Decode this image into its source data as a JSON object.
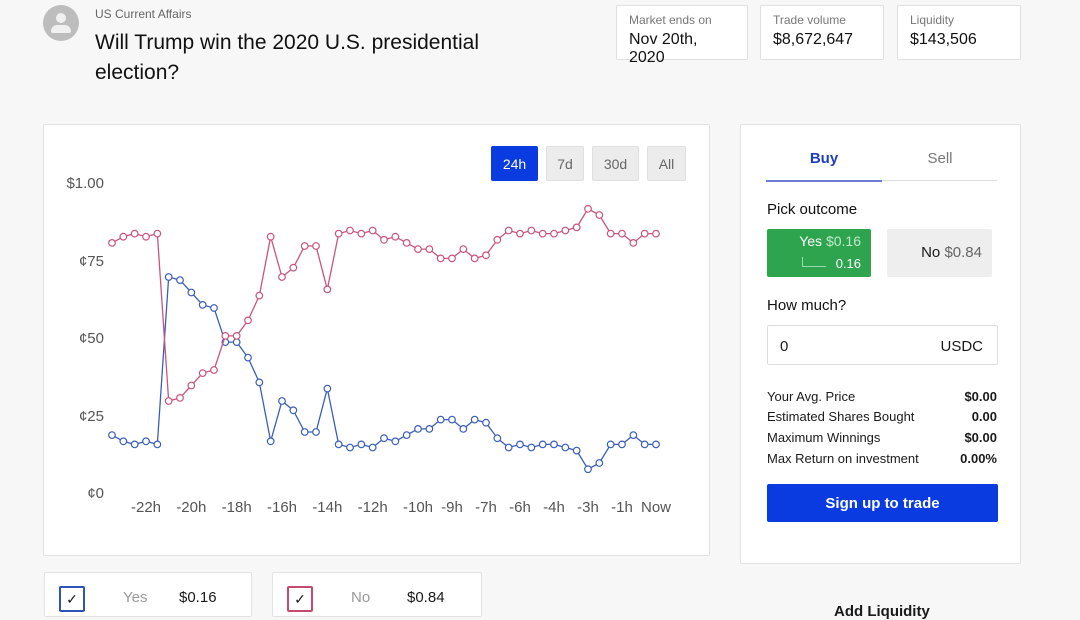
{
  "header": {
    "category": "US Current Affairs",
    "title": "Will Trump win the 2020 U.S. presidential election?"
  },
  "stats": [
    {
      "label": "Market ends on",
      "value": "Nov 20th, 2020"
    },
    {
      "label": "Trade volume",
      "value": "$8,672,647"
    },
    {
      "label": "Liquidity",
      "value": "$143,506"
    }
  ],
  "range_buttons": [
    {
      "label": "24h",
      "active": true
    },
    {
      "label": "7d"
    },
    {
      "label": "30d"
    },
    {
      "label": "All"
    }
  ],
  "chart_data": {
    "type": "line",
    "title": "",
    "xlabel": "",
    "ylabel": "",
    "ylim": [
      0,
      1
    ],
    "y_ticks": [
      {
        "v": 1,
        "label": "$1.00"
      },
      {
        "v": 0.75,
        "label": "¢75"
      },
      {
        "v": 0.5,
        "label": "¢50"
      },
      {
        "v": 0.25,
        "label": "¢25"
      },
      {
        "v": 0,
        "label": "¢0"
      }
    ],
    "x_ticks": [
      {
        "i": 3,
        "label": "-22h"
      },
      {
        "i": 7,
        "label": "-20h"
      },
      {
        "i": 11,
        "label": "-18h"
      },
      {
        "i": 15,
        "label": "-16h"
      },
      {
        "i": 19,
        "label": "-14h"
      },
      {
        "i": 23,
        "label": "-12h"
      },
      {
        "i": 27,
        "label": "-10h"
      },
      {
        "i": 30,
        "label": "-9h"
      },
      {
        "i": 33,
        "label": "-7h"
      },
      {
        "i": 36,
        "label": "-6h"
      },
      {
        "i": 39,
        "label": "-4h"
      },
      {
        "i": 42,
        "label": "-3h"
      },
      {
        "i": 45,
        "label": "-1h"
      },
      {
        "i": 48,
        "label": "Now"
      }
    ],
    "series": [
      {
        "name": "Yes",
        "color": "#3a5fb8",
        "values": [
          0.19,
          0.17,
          0.16,
          0.17,
          0.16,
          0.7,
          0.69,
          0.65,
          0.61,
          0.6,
          0.49,
          0.49,
          0.44,
          0.36,
          0.17,
          0.3,
          0.27,
          0.2,
          0.2,
          0.34,
          0.16,
          0.15,
          0.16,
          0.15,
          0.18,
          0.17,
          0.19,
          0.21,
          0.21,
          0.24,
          0.24,
          0.21,
          0.24,
          0.23,
          0.18,
          0.15,
          0.16,
          0.15,
          0.16,
          0.16,
          0.15,
          0.14,
          0.08,
          0.1,
          0.16,
          0.16,
          0.19,
          0.16,
          0.16
        ]
      },
      {
        "name": "No",
        "color": "#c8557a",
        "values": [
          0.81,
          0.83,
          0.84,
          0.83,
          0.84,
          0.3,
          0.31,
          0.35,
          0.39,
          0.4,
          0.51,
          0.51,
          0.56,
          0.64,
          0.83,
          0.7,
          0.73,
          0.8,
          0.8,
          0.66,
          0.84,
          0.85,
          0.84,
          0.85,
          0.82,
          0.83,
          0.81,
          0.79,
          0.79,
          0.76,
          0.76,
          0.79,
          0.76,
          0.77,
          0.82,
          0.85,
          0.84,
          0.85,
          0.84,
          0.84,
          0.85,
          0.86,
          0.92,
          0.9,
          0.84,
          0.84,
          0.81,
          0.84,
          0.84
        ]
      }
    ]
  },
  "trade": {
    "tabs": [
      "Buy",
      "Sell"
    ],
    "pick_outcome": "Pick outcome",
    "yes": {
      "label": "Yes",
      "price": "$0.16",
      "sub": "0.16"
    },
    "no": {
      "label": "No",
      "price": "$0.84"
    },
    "how_much": "How much?",
    "amount": "0",
    "currency": "USDC",
    "rows": [
      {
        "label": "Your Avg. Price",
        "value": "$0.00"
      },
      {
        "label": "Estimated Shares Bought",
        "value": "0.00"
      },
      {
        "label": "Maximum Winnings",
        "value": "$0.00"
      },
      {
        "label": "Max Return on investment",
        "value": "0.00%"
      }
    ],
    "cta": "Sign up to trade"
  },
  "legend": [
    {
      "label": "Yes",
      "value": "$0.16",
      "color": "#2f55b0"
    },
    {
      "label": "No",
      "value": "$0.84",
      "color": "#c44a70"
    }
  ],
  "add_liquidity": "Add Liquidity"
}
